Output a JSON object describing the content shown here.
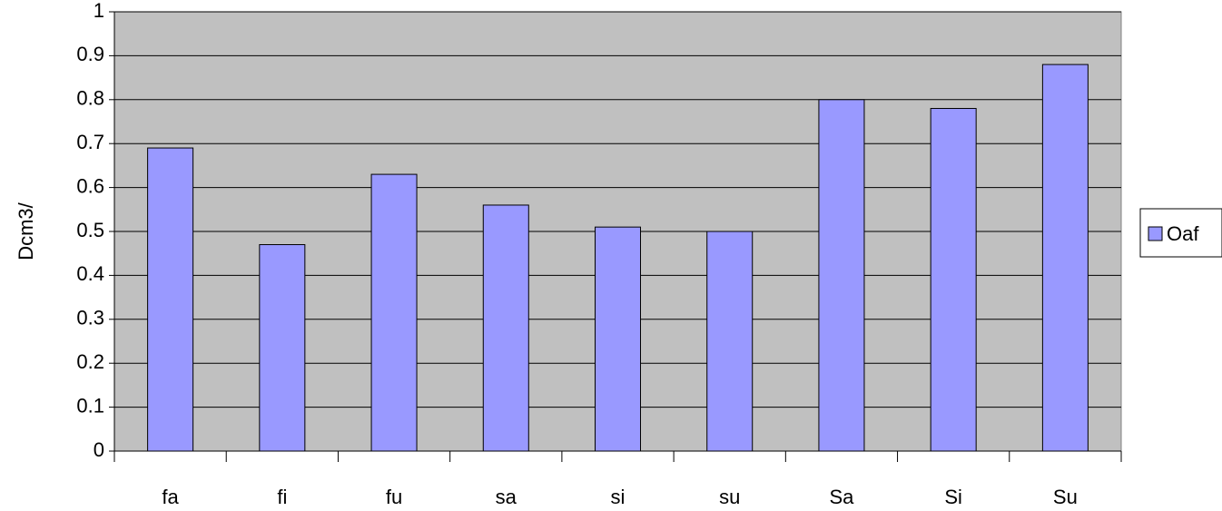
{
  "chart_data": {
    "type": "bar",
    "y_label": "Dcm3/",
    "categories": [
      "fa",
      "fi",
      "fu",
      "sa",
      "si",
      "su",
      "Sa",
      "Si",
      "Su"
    ],
    "series": [
      {
        "name": "Oaf",
        "color": "#9999ff",
        "values": [
          0.69,
          0.47,
          0.63,
          0.56,
          0.51,
          0.5,
          0.8,
          0.78,
          0.88
        ]
      }
    ],
    "ylim": [
      0,
      1
    ],
    "yticks": [
      0,
      0.1,
      0.2,
      0.3,
      0.4,
      0.5,
      0.6,
      0.7,
      0.8,
      0.9,
      1
    ],
    "grid": true,
    "legend": "right"
  }
}
